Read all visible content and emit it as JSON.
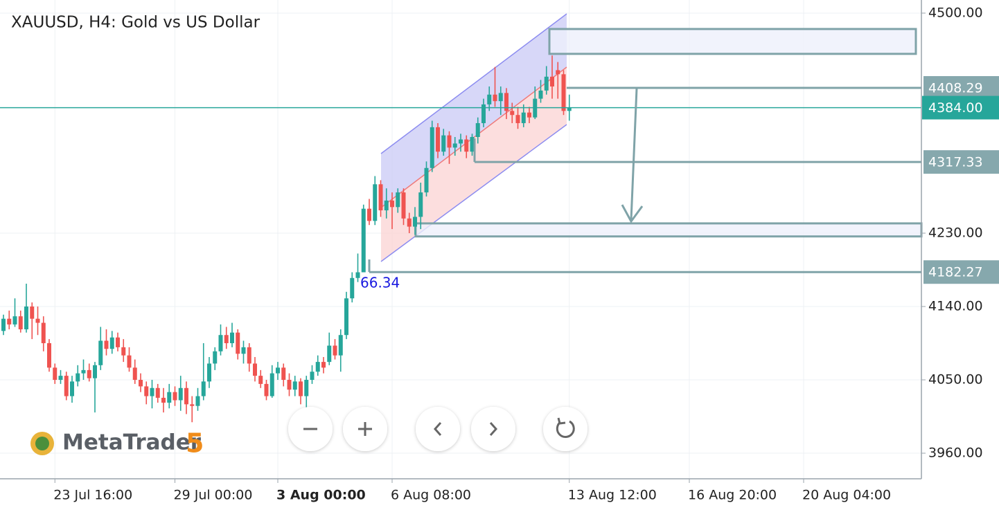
{
  "chart_data": {
    "type": "candlestick",
    "title": "XAUUSD, H4: Gold vs US Dollar",
    "categories": [
      null,
      null,
      null,
      null,
      null,
      null,
      null,
      null,
      null,
      "23 Jul 16:00",
      null,
      null,
      null,
      null,
      null,
      null,
      null,
      null,
      null,
      null,
      null,
      null,
      null,
      null,
      null,
      null,
      null,
      null,
      null,
      null,
      "29 Jul 00:00",
      null,
      null,
      null,
      null,
      null,
      null,
      null,
      null,
      null,
      null,
      null,
      null,
      null,
      null,
      null,
      null,
      null,
      "3 Aug 00:00",
      null,
      null,
      null,
      null,
      null,
      null,
      null,
      null,
      null,
      null,
      null,
      null,
      null,
      null,
      null,
      null,
      null,
      null,
      null,
      "6 Aug 08:00",
      null,
      null,
      null,
      null,
      null,
      null,
      null,
      null,
      null,
      null,
      null,
      null,
      null,
      null,
      null,
      null,
      null,
      null,
      null,
      null,
      null,
      null,
      null,
      null,
      null,
      null,
      null,
      null,
      null,
      null,
      "13 Aug 12:00",
      null,
      null,
      null,
      null,
      null,
      null,
      null,
      null,
      null,
      null,
      null,
      null,
      null,
      null,
      null,
      null,
      null,
      null,
      null,
      null,
      "16 Aug 20:00",
      null,
      null,
      null,
      null,
      null,
      null,
      null,
      null,
      null,
      null,
      null,
      null,
      null,
      null,
      null,
      null,
      null,
      null,
      null,
      "20 Aug 04:00",
      null,
      null,
      null,
      null,
      null,
      null,
      null,
      null,
      null,
      null,
      null,
      null,
      null,
      null,
      null,
      null,
      null,
      null,
      null
    ],
    "open": [
      4110,
      4125,
      4118,
      4128,
      4112,
      4140,
      4125,
      4120,
      4095,
      4065,
      4050,
      4055,
      4030,
      4048,
      4058,
      4062,
      4052,
      4068,
      4098,
      4088,
      4102,
      4090,
      4080,
      4065,
      4050,
      4042,
      4030,
      4040,
      4028,
      4022,
      4035,
      4025,
      4040,
      4020,
      4018,
      4030,
      4048,
      4070,
      4085,
      4105,
      4095,
      4108,
      4082,
      4090,
      4070,
      4055,
      4045,
      4030,
      4058,
      4065,
      4050,
      4038,
      4048,
      4030,
      4050,
      4060,
      4072,
      4072,
      4092,
      4080,
      4105,
      4150,
      4175,
      4182,
      4260,
      4245,
      4290,
      4258,
      4270,
      4262,
      4280,
      4248,
      4238,
      4250,
      4280,
      4310,
      4360,
      4330,
      4350,
      4335,
      4340,
      4345,
      4330,
      4348,
      4365,
      4388,
      4400,
      4392,
      4402,
      4380,
      4375,
      4365,
      4378,
      4372,
      4395,
      4405,
      4422,
      4430,
      4425,
      4380,
      null,
      null,
      null,
      null,
      null,
      null,
      null,
      null,
      null,
      null,
      null,
      null,
      null,
      null,
      null,
      null,
      null,
      null,
      null,
      null,
      null,
      null,
      null,
      null,
      null,
      null,
      null,
      null,
      null,
      null,
      null,
      null,
      null,
      null,
      null,
      null,
      null,
      null,
      null,
      null,
      null,
      null,
      null,
      null,
      null,
      null,
      null,
      null,
      null,
      null,
      null,
      null,
      null,
      null,
      null,
      null,
      null,
      null,
      null,
      null
    ],
    "high": [
      4130,
      4135,
      4150,
      4135,
      4168,
      4145,
      4140,
      4128,
      4100,
      4070,
      4062,
      4060,
      4055,
      4068,
      4075,
      4070,
      4072,
      4115,
      4112,
      4110,
      4108,
      4100,
      4090,
      4075,
      4058,
      4048,
      4050,
      4045,
      4040,
      4045,
      4042,
      4055,
      4048,
      4030,
      4040,
      4095,
      4078,
      4090,
      4118,
      4115,
      4120,
      4112,
      4098,
      4095,
      4078,
      4062,
      4050,
      4068,
      4072,
      4070,
      4058,
      4055,
      4052,
      4055,
      4068,
      4080,
      4078,
      4108,
      4100,
      4112,
      4158,
      4182,
      4205,
      4265,
      4272,
      4300,
      4295,
      4285,
      4280,
      4285,
      4285,
      4255,
      4262,
      4292,
      4318,
      4368,
      4365,
      4358,
      4355,
      4348,
      4352,
      4350,
      4352,
      4372,
      4395,
      4410,
      4434,
      4410,
      4408,
      4390,
      4385,
      4388,
      4385,
      4410,
      4418,
      4435,
      4448,
      4440,
      4430,
      4400,
      null,
      null,
      null,
      null,
      null,
      null,
      null,
      null,
      null,
      null,
      null,
      null,
      null,
      null,
      null,
      null,
      null,
      null,
      null,
      null,
      null,
      null,
      null,
      null,
      null,
      null,
      null,
      null,
      null,
      null,
      null,
      null,
      null,
      null,
      null,
      null,
      null,
      null,
      null,
      null,
      null,
      null,
      null,
      null,
      null,
      null,
      null,
      null,
      null,
      null,
      null,
      null,
      null,
      null,
      null,
      null,
      null,
      null,
      null,
      null
    ],
    "low": [
      4105,
      4112,
      4115,
      4108,
      4108,
      4100,
      4105,
      4085,
      4060,
      4045,
      4045,
      4025,
      4022,
      4042,
      4050,
      4048,
      4010,
      4062,
      4080,
      4082,
      4085,
      4072,
      4060,
      4045,
      4035,
      4020,
      4015,
      4022,
      4010,
      4015,
      4018,
      4012,
      4008,
      3998,
      4012,
      4025,
      4040,
      4062,
      4080,
      4088,
      4090,
      4075,
      4070,
      4060,
      4048,
      4040,
      4025,
      4028,
      4050,
      4042,
      4030,
      4030,
      4020,
      4012,
      4045,
      4055,
      4058,
      4068,
      4075,
      4060,
      4100,
      4145,
      4170,
      4182,
      4240,
      4240,
      4250,
      4248,
      4235,
      4255,
      4240,
      4230,
      4228,
      4235,
      4275,
      4305,
      4322,
      4325,
      4315,
      4325,
      4330,
      4322,
      4325,
      4340,
      4360,
      4380,
      4385,
      4375,
      4370,
      4365,
      4358,
      4360,
      4365,
      4370,
      4390,
      4400,
      4395,
      4395,
      4375,
      4368,
      null,
      null,
      null,
      null,
      null,
      null,
      null,
      null,
      null,
      null,
      null,
      null,
      null,
      null,
      null,
      null,
      null,
      null,
      null,
      null,
      null,
      null,
      null,
      null,
      null,
      null,
      null,
      null,
      null,
      null,
      null,
      null,
      null,
      null,
      null,
      null,
      null,
      null,
      null,
      null,
      null,
      null,
      null,
      null,
      null,
      null,
      null,
      null,
      null,
      null,
      null,
      null,
      null,
      null,
      null,
      null,
      null,
      null,
      null,
      null
    ],
    "close": [
      4125,
      4118,
      4128,
      4112,
      4140,
      4125,
      4120,
      4095,
      4065,
      4050,
      4055,
      4030,
      4048,
      4058,
      4062,
      4052,
      4068,
      4098,
      4088,
      4102,
      4090,
      4080,
      4065,
      4050,
      4042,
      4030,
      4040,
      4028,
      4022,
      4035,
      4025,
      4040,
      4020,
      4018,
      4030,
      4048,
      4070,
      4085,
      4105,
      4095,
      4108,
      4082,
      4090,
      4070,
      4055,
      4045,
      4030,
      4058,
      4065,
      4050,
      4038,
      4048,
      4030,
      4050,
      4060,
      4072,
      4065,
      4092,
      4080,
      4105,
      4150,
      4175,
      4182,
      4260,
      4245,
      4290,
      4258,
      4270,
      4262,
      4280,
      4248,
      4238,
      4250,
      4280,
      4310,
      4360,
      4330,
      4350,
      4335,
      4340,
      4345,
      4330,
      4348,
      4365,
      4388,
      4400,
      4392,
      4402,
      4380,
      4375,
      4365,
      4378,
      4372,
      4395,
      4405,
      4422,
      4410,
      4425,
      4380,
      4384,
      null,
      null,
      null,
      null,
      null,
      null,
      null,
      null,
      null,
      null,
      null,
      null,
      null,
      null,
      null,
      null,
      null,
      null,
      null,
      null,
      null,
      null,
      null,
      null,
      null,
      null,
      null,
      null,
      null,
      null,
      null,
      null,
      null,
      null,
      null,
      null,
      null,
      null,
      null,
      null,
      null,
      null,
      null,
      null,
      null,
      null,
      null,
      null,
      null,
      null,
      null,
      null,
      null,
      null,
      null,
      null,
      null,
      null,
      null,
      null
    ],
    "up_color": "#26a69a",
    "down_color": "#ef5350",
    "ylim": [
      3928.6,
      4516.1
    ],
    "yticks": [
      {
        "value": 3960,
        "label": "3960.00"
      },
      {
        "value": 4050,
        "label": "4050.00"
      },
      {
        "value": 4140,
        "label": "4140.00"
      },
      {
        "value": 4230,
        "label": "4230.00"
      },
      {
        "value": 4500,
        "label": "4500.00"
      }
    ],
    "grid": true,
    "levels": [
      4408.29,
      4317.33,
      4182.27
    ],
    "last_price": {
      "value": 4384,
      "label": "4384.00"
    },
    "zones": [
      {
        "low": 4450,
        "high": 4480.5
      },
      {
        "low": 4226,
        "high": 4242
      }
    ],
    "annotations": [
      {
        "text": "66.34"
      }
    ],
    "watermark": {
      "name": "MetaTrader",
      "version": "5"
    }
  }
}
